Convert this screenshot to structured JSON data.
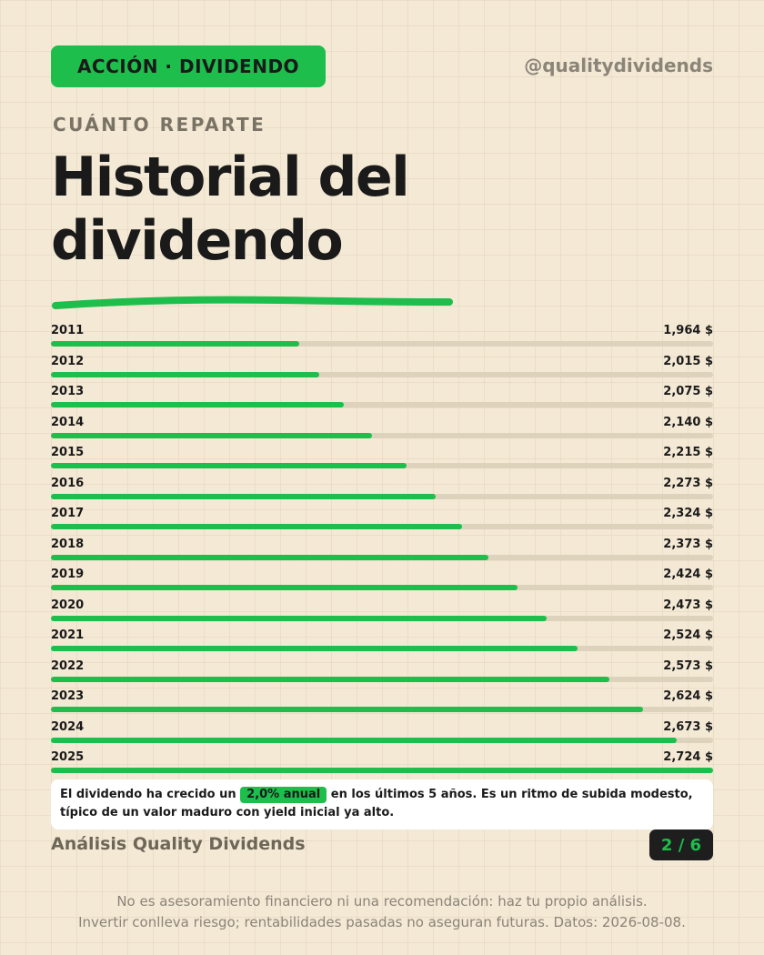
{
  "header": {
    "tag": "ACCIÓN · DIVIDENDO",
    "handle": "@qualitydividends",
    "kicker": "CUÁNTO REPARTE",
    "title_line1": "Historial del",
    "title_line2": "dividendo"
  },
  "colors": {
    "accent": "#1dbe4c",
    "background": "#f4e9d5",
    "track": "#ddd2bc",
    "text": "#1a1a1a"
  },
  "chart_data": {
    "type": "bar",
    "orientation": "horizontal",
    "categories": [
      "2011",
      "2012",
      "2013",
      "2014",
      "2015",
      "2016",
      "2017",
      "2018",
      "2019",
      "2020",
      "2021",
      "2022",
      "2023",
      "2024",
      "2025"
    ],
    "values": [
      1.964,
      2.015,
      2.075,
      2.14,
      2.215,
      2.273,
      2.324,
      2.373,
      2.424,
      2.473,
      2.524,
      2.573,
      2.624,
      2.673,
      2.724
    ],
    "value_labels": [
      "1,964 $",
      "2,015 $",
      "2,075 $",
      "2,140 $",
      "2,215 $",
      "2,273 $",
      "2,324 $",
      "2,373 $",
      "2,424 $",
      "2,473 $",
      "2,524 $",
      "2,573 $",
      "2,624 $",
      "2,673 $",
      "2,724 $"
    ],
    "xlim": [
      0,
      2.724
    ],
    "grid": false
  },
  "note": {
    "before": "El dividendo ha crecido un",
    "highlight": "2,0% anual",
    "after": "en los últimos 5 años. Es un ritmo de subida modesto, típico de un valor maduro con yield inicial ya alto."
  },
  "footer": {
    "brand": "Análisis Quality Dividends",
    "page": "2 / 6",
    "disclaimer_line1": "No es asesoramiento financiero ni una recomendación: haz tu propio análisis.",
    "disclaimer_line2": "Invertir conlleva riesgo; rentabilidades pasadas no aseguran futuras. Datos: 2026-08-08."
  }
}
